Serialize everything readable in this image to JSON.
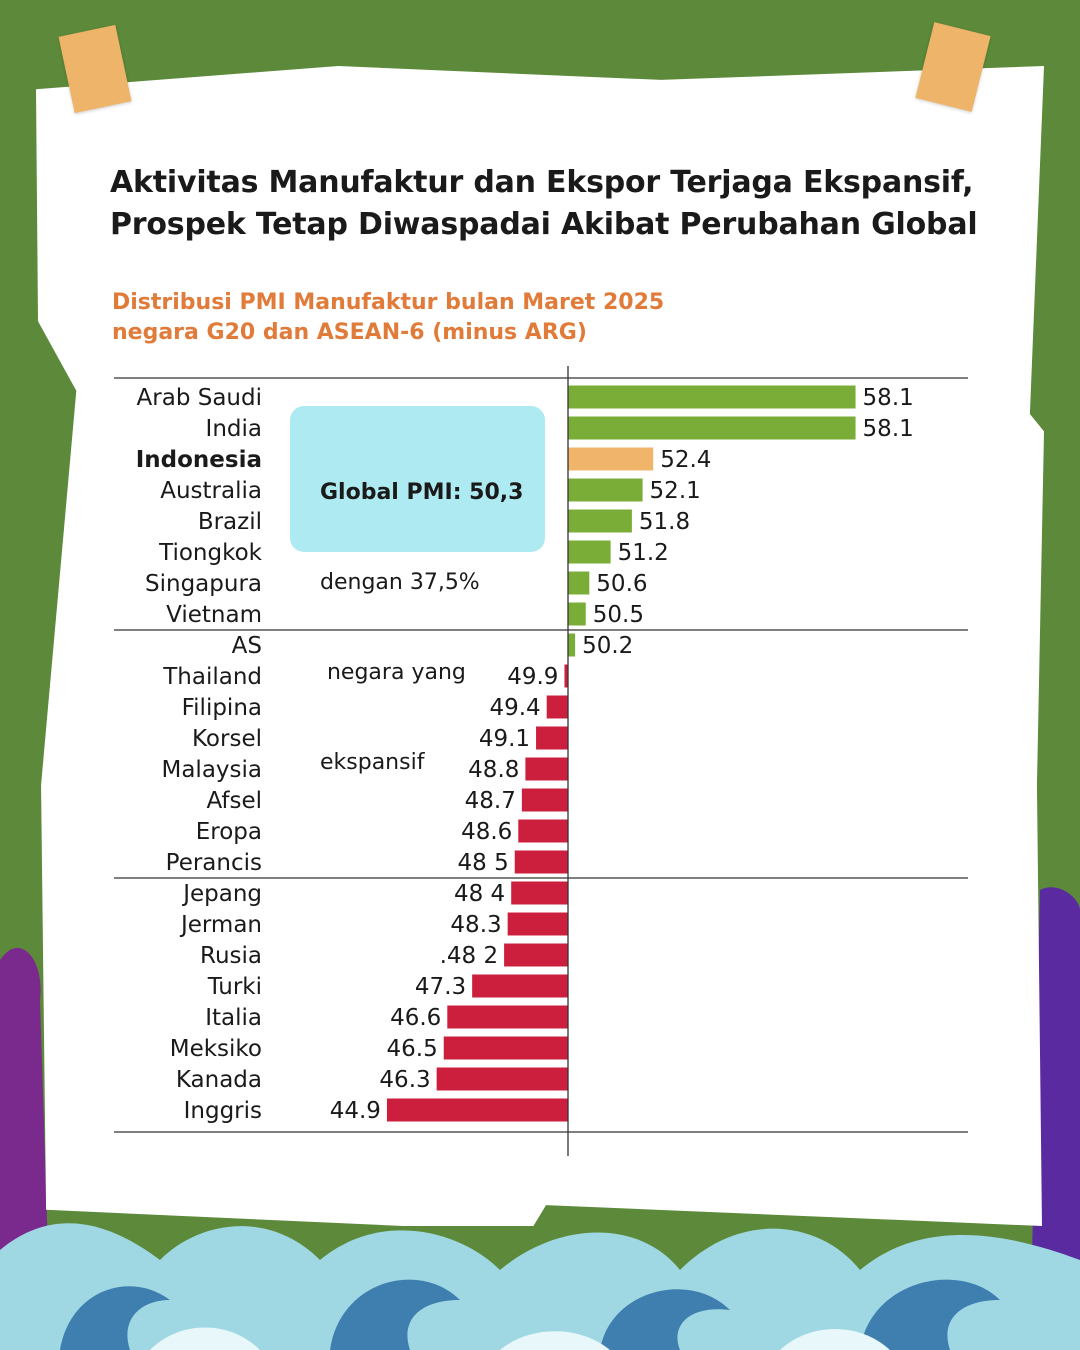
{
  "title": {
    "line1": "Aktivitas Manufaktur dan Ekspor Terjaga Ekspansif,",
    "line2": "Prospek Tetap Diwaspadai Akibat Perubahan Global"
  },
  "subtitle": {
    "line1": "Distribusi PMI Manufaktur bulan Maret 2025",
    "line2": "negara G20 dan ASEAN-6 (minus ARG)"
  },
  "callout": {
    "headline": "Global PMI: 50,3",
    "line1": "dengan 37,5%",
    "line2": " negara yang",
    "line3": "ekspansif"
  },
  "colors": {
    "background": "#5c8a3a",
    "expansion": "#7aad38",
    "indonesia": "#f0b56b",
    "contraction": "#cc1f3e",
    "subtitle": "#e07b39",
    "callout": "#aeeaf1"
  },
  "chart_data": {
    "type": "bar",
    "orientation": "horizontal",
    "baseline": 50,
    "highlight": "Indonesia",
    "categories": [
      "Arab Saudi",
      "India",
      "Indonesia",
      "Australia",
      "Brazil",
      "Tiongkok",
      "Singapura",
      "Vietnam",
      "AS",
      "Thailand",
      "Filipina",
      "Korsel",
      "Malaysia",
      "Afsel",
      "Eropa",
      "Perancis",
      "Jepang",
      "Jerman",
      "Rusia",
      "Turki",
      "Italia",
      "Meksiko",
      "Kanada",
      "Inggris"
    ],
    "values": [
      58.1,
      58.1,
      52.4,
      52.1,
      51.8,
      51.2,
      50.6,
      50.5,
      50.2,
      49.9,
      49.4,
      49.1,
      48.8,
      48.7,
      48.6,
      48.5,
      48.4,
      48.3,
      48.2,
      47.3,
      46.6,
      46.5,
      46.3,
      44.9
    ],
    "value_labels": [
      "58.1",
      "58.1",
      "52.4",
      "52.1",
      "51.8",
      "51.2",
      "50.6",
      "50.5",
      "50.2",
      "49.9",
      "49.4",
      "49.1",
      "48.8",
      "48.7",
      "48.6",
      "48 5",
      "48 4",
      "48.3",
      ".48 2",
      "47.3",
      "46.6",
      "46.5",
      "46.3",
      "44.9"
    ],
    "group_breaks_after": [
      "Vietnam",
      "Perancis"
    ]
  }
}
